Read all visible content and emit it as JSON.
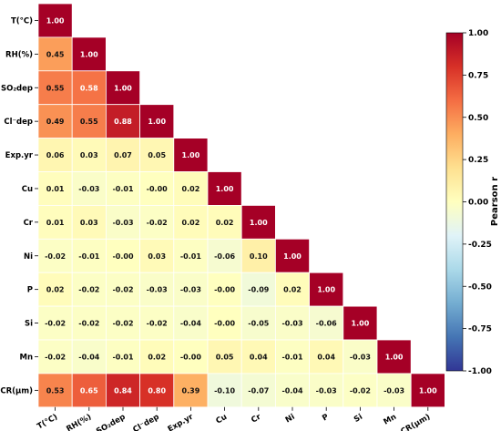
{
  "chart_data": {
    "type": "heatmap",
    "variables": [
      "T(°C)",
      "RH(%)",
      "SO₂dep",
      "Cl⁻dep",
      "Exp.yr",
      "Cu",
      "Cr",
      "Ni",
      "P",
      "Si",
      "Mn",
      "CR(μm)"
    ],
    "matrix_lower": [
      [
        "1.00"
      ],
      [
        "0.45",
        "1.00"
      ],
      [
        "0.55",
        "0.58",
        "1.00"
      ],
      [
        "0.49",
        "0.55",
        "0.88",
        "1.00"
      ],
      [
        "0.06",
        "0.03",
        "0.07",
        "0.05",
        "1.00"
      ],
      [
        "0.01",
        "-0.03",
        "-0.01",
        "-0.00",
        "0.02",
        "1.00"
      ],
      [
        "0.01",
        "0.03",
        "-0.03",
        "-0.02",
        "0.02",
        "0.02",
        "1.00"
      ],
      [
        "-0.02",
        "-0.01",
        "-0.00",
        "0.03",
        "-0.01",
        "-0.06",
        "0.10",
        "1.00"
      ],
      [
        "0.02",
        "-0.02",
        "-0.02",
        "-0.03",
        "-0.03",
        "-0.00",
        "-0.09",
        "0.02",
        "1.00"
      ],
      [
        "-0.02",
        "-0.02",
        "-0.02",
        "-0.02",
        "-0.04",
        "-0.00",
        "-0.05",
        "-0.03",
        "-0.06",
        "1.00"
      ],
      [
        "-0.02",
        "-0.04",
        "-0.01",
        "0.02",
        "-0.00",
        "0.05",
        "0.04",
        "-0.01",
        "0.04",
        "-0.03",
        "1.00"
      ],
      [
        "0.53",
        "0.65",
        "0.84",
        "0.80",
        "0.39",
        "-0.10",
        "-0.07",
        "-0.04",
        "-0.03",
        "-0.02",
        "-0.03",
        "1.00"
      ]
    ],
    "colorbar": {
      "label": "Pearson r",
      "range": [
        -1.0,
        1.0
      ],
      "ticks": [
        "1.00",
        "0.75",
        "0.50",
        "0.25",
        "0.00",
        "-0.25",
        "-0.50",
        "-0.75",
        "-1.00"
      ]
    },
    "colormap_stops": [
      "#313695",
      "#4575b4",
      "#74add1",
      "#abd9e9",
      "#e0f3f8",
      "#ffffbf",
      "#fee090",
      "#fdae61",
      "#f46d43",
      "#d73027",
      "#a50026"
    ]
  }
}
